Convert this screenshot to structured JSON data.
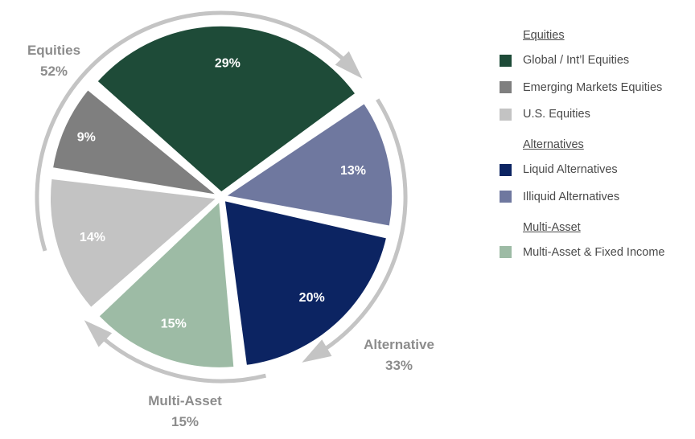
{
  "chart_data": {
    "type": "pie",
    "slices": [
      {
        "name": "Global / Int'l Equities",
        "value": 29,
        "label": "29%",
        "color": "#1e4b38",
        "group": "Equities"
      },
      {
        "name": "Illiquid Alternatives",
        "value": 13,
        "label": "13%",
        "color": "#6f789f",
        "group": "Alternatives"
      },
      {
        "name": "Liquid Alternatives",
        "value": 20,
        "label": "20%",
        "color": "#0c2462",
        "group": "Alternatives"
      },
      {
        "name": "Multi-Asset & Fixed Income",
        "value": 15,
        "label": "15%",
        "color": "#9dbba5",
        "group": "Multi-Asset"
      },
      {
        "name": "U.S. Equities",
        "value": 14,
        "label": "14%",
        "color": "#c3c3c3",
        "group": "Equities"
      },
      {
        "name": "Emerging Markets Equities",
        "value": 9,
        "label": "9%",
        "color": "#7f7f7f",
        "group": "Equities"
      }
    ],
    "groups": [
      {
        "name": "Equities",
        "value": 52,
        "value_label": "52%"
      },
      {
        "name": "Alternative",
        "value": 33,
        "value_label": "33%"
      },
      {
        "name": "Multi-Asset",
        "value": 15,
        "value_label": "15%"
      }
    ],
    "arrow_color": "#c4c4c4",
    "legend": [
      {
        "title": "Equities",
        "items": [
          {
            "label": "Global / Int’l Equities",
            "color": "#1e4b38"
          },
          {
            "label": "Emerging Markets Equities",
            "color": "#7f7f7f"
          },
          {
            "label": "U.S. Equities",
            "color": "#c3c3c3"
          }
        ]
      },
      {
        "title": "Alternatives",
        "items": [
          {
            "label": "Liquid Alternatives",
            "color": "#0c2462"
          },
          {
            "label": "Illiquid Alternatives",
            "color": "#6f789f"
          }
        ]
      },
      {
        "title": "Multi-Asset",
        "items": [
          {
            "label": "Multi-Asset & Fixed Income",
            "color": "#9dbba5"
          }
        ]
      }
    ]
  }
}
